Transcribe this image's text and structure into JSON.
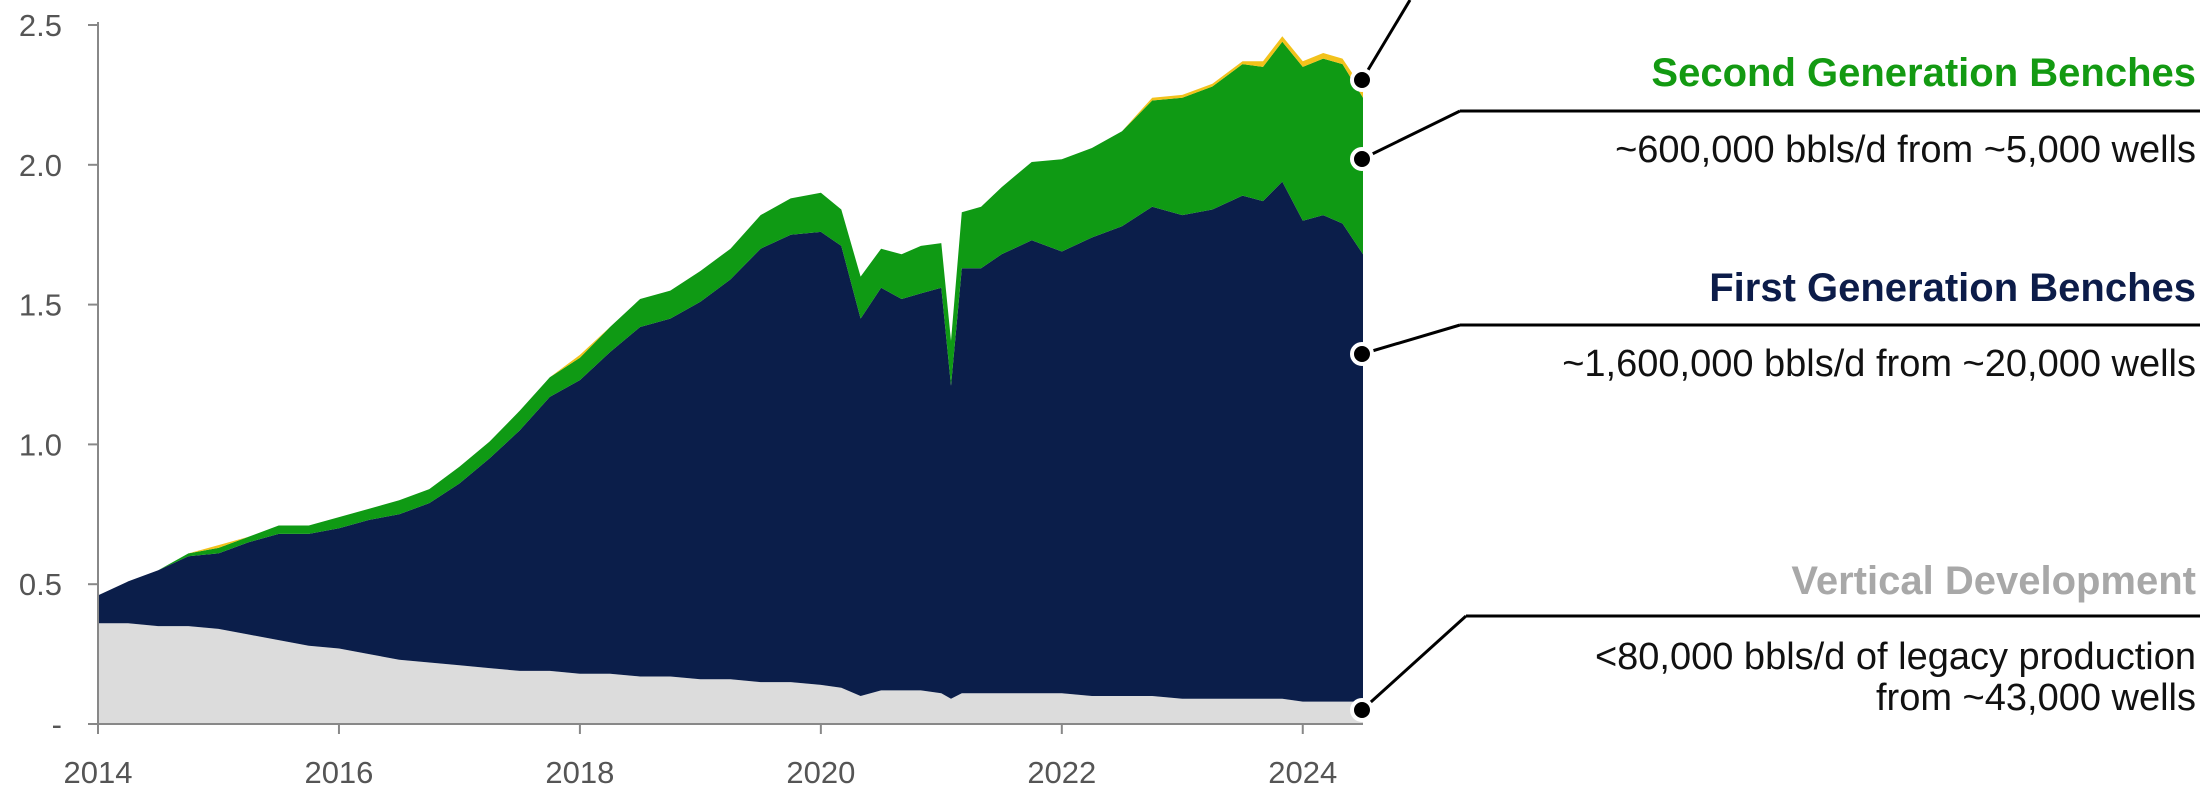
{
  "chart_data": {
    "type": "area",
    "stacked": true,
    "x_ticks": [
      "2014",
      "2016",
      "2018",
      "2020",
      "2022",
      "2024"
    ],
    "y_ticks": [
      "-",
      "0.5",
      "1.0",
      "1.5",
      "2.0",
      "2.5"
    ],
    "ylim": [
      0,
      2.5
    ],
    "xlim": [
      2014.0,
      2024.5
    ],
    "grid": false,
    "colors": {
      "vertical": "#dcdcdc",
      "first_gen": "#0b1e4a",
      "second_gen": "#0f9a14",
      "top_sliver": "#f2c21b"
    },
    "x": [
      2014.0,
      2014.25,
      2014.5,
      2014.75,
      2015.0,
      2015.25,
      2015.5,
      2015.75,
      2016.0,
      2016.25,
      2016.5,
      2016.75,
      2017.0,
      2017.25,
      2017.5,
      2017.75,
      2018.0,
      2018.25,
      2018.5,
      2018.75,
      2019.0,
      2019.25,
      2019.5,
      2019.75,
      2020.0,
      2020.17,
      2020.33,
      2020.5,
      2020.67,
      2020.83,
      2021.0,
      2021.08,
      2021.17,
      2021.33,
      2021.5,
      2021.75,
      2022.0,
      2022.25,
      2022.5,
      2022.75,
      2023.0,
      2023.25,
      2023.5,
      2023.67,
      2023.83,
      2024.0,
      2024.17,
      2024.33,
      2024.5
    ],
    "series": [
      {
        "key": "vertical",
        "values": [
          0.36,
          0.36,
          0.35,
          0.35,
          0.34,
          0.32,
          0.3,
          0.28,
          0.27,
          0.25,
          0.23,
          0.22,
          0.21,
          0.2,
          0.19,
          0.19,
          0.18,
          0.18,
          0.17,
          0.17,
          0.16,
          0.16,
          0.15,
          0.15,
          0.14,
          0.13,
          0.1,
          0.12,
          0.12,
          0.12,
          0.11,
          0.09,
          0.11,
          0.11,
          0.11,
          0.11,
          0.11,
          0.1,
          0.1,
          0.1,
          0.09,
          0.09,
          0.09,
          0.09,
          0.09,
          0.08,
          0.08,
          0.08,
          0.08
        ]
      },
      {
        "key": "first_gen",
        "values": [
          0.1,
          0.15,
          0.2,
          0.25,
          0.27,
          0.33,
          0.38,
          0.4,
          0.43,
          0.48,
          0.52,
          0.57,
          0.65,
          0.75,
          0.86,
          0.98,
          1.05,
          1.15,
          1.25,
          1.28,
          1.35,
          1.43,
          1.55,
          1.6,
          1.62,
          1.58,
          1.35,
          1.44,
          1.4,
          1.42,
          1.45,
          1.12,
          1.52,
          1.52,
          1.57,
          1.62,
          1.58,
          1.64,
          1.68,
          1.75,
          1.73,
          1.75,
          1.8,
          1.78,
          1.85,
          1.72,
          1.74,
          1.71,
          1.6
        ]
      },
      {
        "key": "second_gen",
        "values": [
          0.0,
          0.0,
          0.0,
          0.01,
          0.02,
          0.02,
          0.03,
          0.03,
          0.04,
          0.04,
          0.05,
          0.05,
          0.06,
          0.06,
          0.07,
          0.07,
          0.08,
          0.09,
          0.1,
          0.1,
          0.11,
          0.11,
          0.12,
          0.13,
          0.14,
          0.13,
          0.15,
          0.14,
          0.16,
          0.17,
          0.16,
          0.16,
          0.2,
          0.22,
          0.24,
          0.28,
          0.33,
          0.32,
          0.34,
          0.38,
          0.42,
          0.44,
          0.47,
          0.48,
          0.5,
          0.55,
          0.56,
          0.57,
          0.56
        ]
      },
      {
        "key": "top_sliver",
        "values": [
          0.0,
          0.0,
          0.0,
          0.0,
          0.01,
          0.0,
          0.0,
          0.0,
          0.0,
          0.0,
          0.0,
          0.0,
          0.0,
          0.0,
          0.0,
          0.0,
          0.01,
          0.0,
          0.0,
          0.0,
          0.0,
          0.0,
          0.0,
          0.0,
          0.0,
          0.0,
          0.0,
          0.0,
          0.0,
          0.0,
          0.0,
          0.0,
          0.0,
          0.0,
          0.0,
          0.0,
          0.0,
          0.0,
          0.0,
          0.01,
          0.01,
          0.01,
          0.01,
          0.02,
          0.02,
          0.02,
          0.02,
          0.02,
          0.03
        ]
      }
    ],
    "annotations": [
      {
        "key": "second",
        "title": "Second Generation Benches",
        "lines": [
          "~600,000 bbls/d from ~5,000 wells"
        ],
        "color": "green"
      },
      {
        "key": "first",
        "title": "First Generation Benches",
        "lines": [
          "~1,600,000 bbls/d from ~20,000 wells"
        ],
        "color": "navy"
      },
      {
        "key": "vertical",
        "title": "Vertical Development",
        "lines": [
          "<80,000 bbls/d of legacy production",
          "from ~43,000 wells"
        ],
        "color": "grey"
      }
    ]
  }
}
